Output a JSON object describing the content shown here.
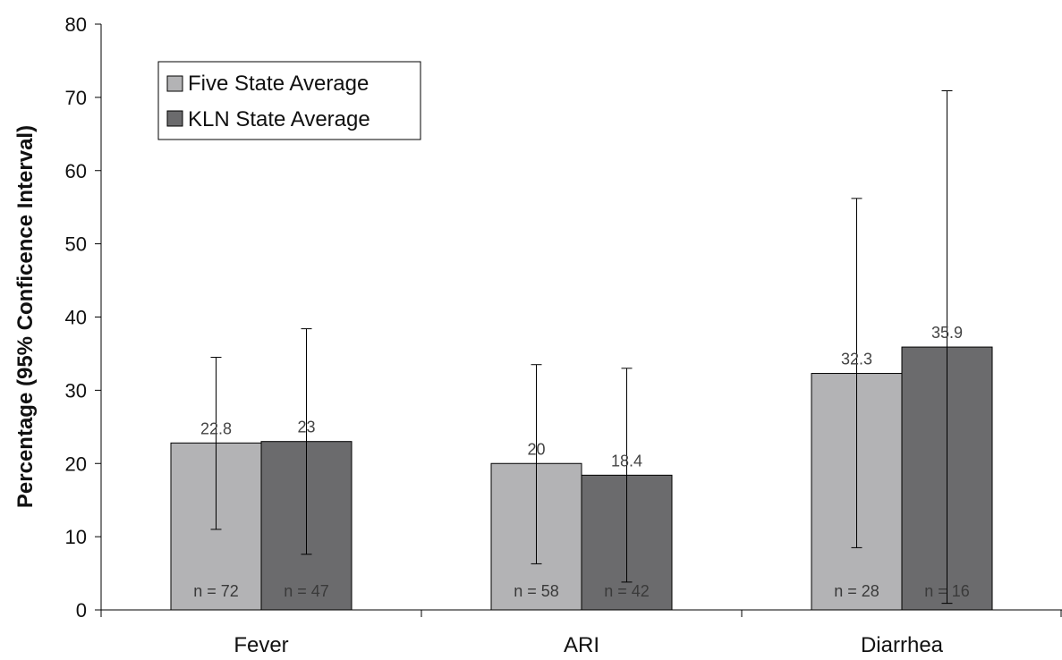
{
  "chart_data": {
    "type": "bar",
    "title": "",
    "xlabel": "",
    "ylabel": "Percentage (95% Conficence Interval)",
    "ylim": [
      0,
      80
    ],
    "yticks": [
      0,
      10,
      20,
      30,
      40,
      50,
      60,
      70,
      80
    ],
    "ytick_labels": [
      "0",
      "10",
      "20",
      "30",
      "40",
      "50",
      "60",
      "70",
      "80"
    ],
    "categories": [
      "Fever",
      "ARI",
      "Diarrhea"
    ],
    "legend_position": "top-left",
    "grid": false,
    "series": [
      {
        "name": "Five State Average",
        "color": "#b3b3b5",
        "values": [
          22.8,
          20,
          32.3
        ],
        "value_labels": [
          "22.8",
          "20",
          "32.3"
        ],
        "ci_low": [
          11,
          6.3,
          8.5
        ],
        "ci_high": [
          34.5,
          33.5,
          56.2
        ],
        "n_labels": [
          "n = 72",
          "n = 58",
          "n = 28"
        ]
      },
      {
        "name": "KLN State Average",
        "color": "#6b6b6d",
        "values": [
          23,
          18.4,
          35.9
        ],
        "value_labels": [
          "23",
          "18.4",
          "35.9"
        ],
        "ci_low": [
          7.6,
          3.8,
          0.9
        ],
        "ci_high": [
          38.4,
          33,
          70.9
        ],
        "n_labels": [
          "n = 47",
          "n = 42",
          "n = 16"
        ]
      }
    ]
  }
}
